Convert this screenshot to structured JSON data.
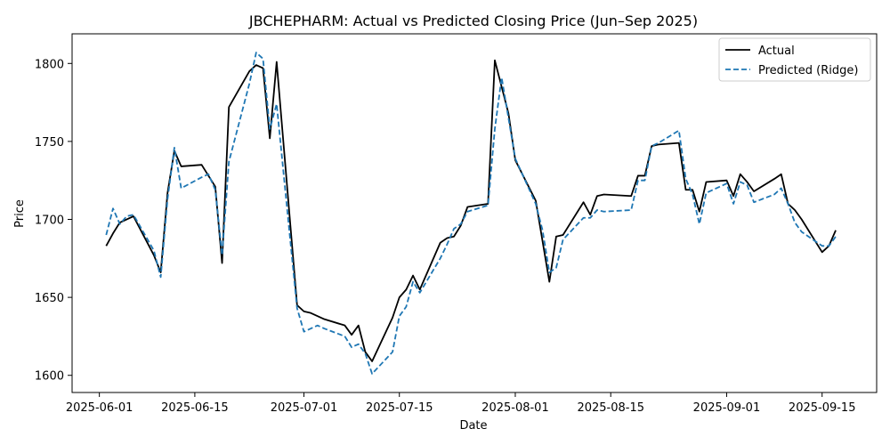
{
  "chart_data": {
    "type": "line",
    "title": "JBCHEPHARM: Actual vs Predicted Closing Price (Jun–Sep 2025)",
    "xlabel": "Date",
    "ylabel": "Price",
    "xlim": [
      "2025-05-28",
      "2025-09-23"
    ],
    "ylim": [
      1589,
      1819
    ],
    "xticks": [
      "2025-06-01",
      "2025-06-15",
      "2025-07-01",
      "2025-07-15",
      "2025-08-01",
      "2025-08-15",
      "2025-09-01",
      "2025-09-15"
    ],
    "yticks": [
      1600,
      1650,
      1700,
      1750,
      1800
    ],
    "grid": false,
    "legend_position": "top-right",
    "x": [
      "2025-06-02",
      "2025-06-03",
      "2025-06-04",
      "2025-06-05",
      "2025-06-06",
      "2025-06-09",
      "2025-06-10",
      "2025-06-11",
      "2025-06-12",
      "2025-06-13",
      "2025-06-16",
      "2025-06-17",
      "2025-06-18",
      "2025-06-19",
      "2025-06-20",
      "2025-06-23",
      "2025-06-24",
      "2025-06-25",
      "2025-06-26",
      "2025-06-27",
      "2025-06-30",
      "2025-07-01",
      "2025-07-02",
      "2025-07-03",
      "2025-07-04",
      "2025-07-07",
      "2025-07-08",
      "2025-07-09",
      "2025-07-10",
      "2025-07-11",
      "2025-07-14",
      "2025-07-15",
      "2025-07-16",
      "2025-07-17",
      "2025-07-18",
      "2025-07-21",
      "2025-07-22",
      "2025-07-23",
      "2025-07-24",
      "2025-07-25",
      "2025-07-28",
      "2025-07-29",
      "2025-07-30",
      "2025-07-31",
      "2025-08-01",
      "2025-08-04",
      "2025-08-05",
      "2025-08-06",
      "2025-08-07",
      "2025-08-08",
      "2025-08-11",
      "2025-08-12",
      "2025-08-13",
      "2025-08-14",
      "2025-08-18",
      "2025-08-19",
      "2025-08-20",
      "2025-08-21",
      "2025-08-22",
      "2025-08-25",
      "2025-08-26",
      "2025-08-27",
      "2025-08-28",
      "2025-08-29",
      "2025-09-01",
      "2025-09-02",
      "2025-09-03",
      "2025-09-04",
      "2025-09-05",
      "2025-09-08",
      "2025-09-09",
      "2025-09-10",
      "2025-09-11",
      "2025-09-12",
      "2025-09-15",
      "2025-09-16",
      "2025-09-17"
    ],
    "series": [
      {
        "name": "Actual",
        "color": "#000000",
        "style": "solid",
        "values": [
          1683,
          1691,
          1698,
          1700,
          1702,
          1677,
          1666,
          1717,
          1744,
          1734,
          1735,
          1728,
          1721,
          1672,
          1772,
          1795,
          1799,
          1797,
          1752,
          1801,
          1645,
          1641,
          1640,
          1638,
          1636,
          1632,
          1626,
          1632,
          1615,
          1609,
          1637,
          1650,
          1655,
          1664,
          1655,
          1685,
          1688,
          1689,
          1696,
          1708,
          1710,
          1802,
          1785,
          1768,
          1738,
          1712,
          1686,
          1660,
          1689,
          1690,
          1711,
          1703,
          1715,
          1716,
          1715,
          1728,
          1728,
          1747,
          1748,
          1749,
          1719,
          1719,
          1705,
          1724,
          1725,
          1715,
          1729,
          1724,
          1718,
          1726,
          1729,
          1710,
          1706,
          1700,
          1679,
          1683,
          1693
        ]
      },
      {
        "name": "Predicted (Ridge)",
        "color": "#1f77b4",
        "style": "dashed",
        "values": [
          1690,
          1707,
          1697,
          1702,
          1703,
          1680,
          1663,
          1713,
          1746,
          1720,
          1727,
          1729,
          1719,
          1677,
          1737,
          1787,
          1807,
          1803,
          1758,
          1774,
          1643,
          1628,
          1630,
          1632,
          1630,
          1625,
          1618,
          1620,
          1614,
          1601,
          1615,
          1638,
          1644,
          1660,
          1653,
          1675,
          1684,
          1694,
          1697,
          1705,
          1709,
          1758,
          1791,
          1765,
          1739,
          1710,
          1693,
          1666,
          1669,
          1687,
          1701,
          1701,
          1706,
          1705,
          1706,
          1725,
          1725,
          1747,
          1749,
          1757,
          1726,
          1716,
          1697,
          1717,
          1723,
          1710,
          1724,
          1722,
          1711,
          1716,
          1720,
          1710,
          1698,
          1692,
          1683,
          1683,
          1689
        ]
      }
    ]
  }
}
